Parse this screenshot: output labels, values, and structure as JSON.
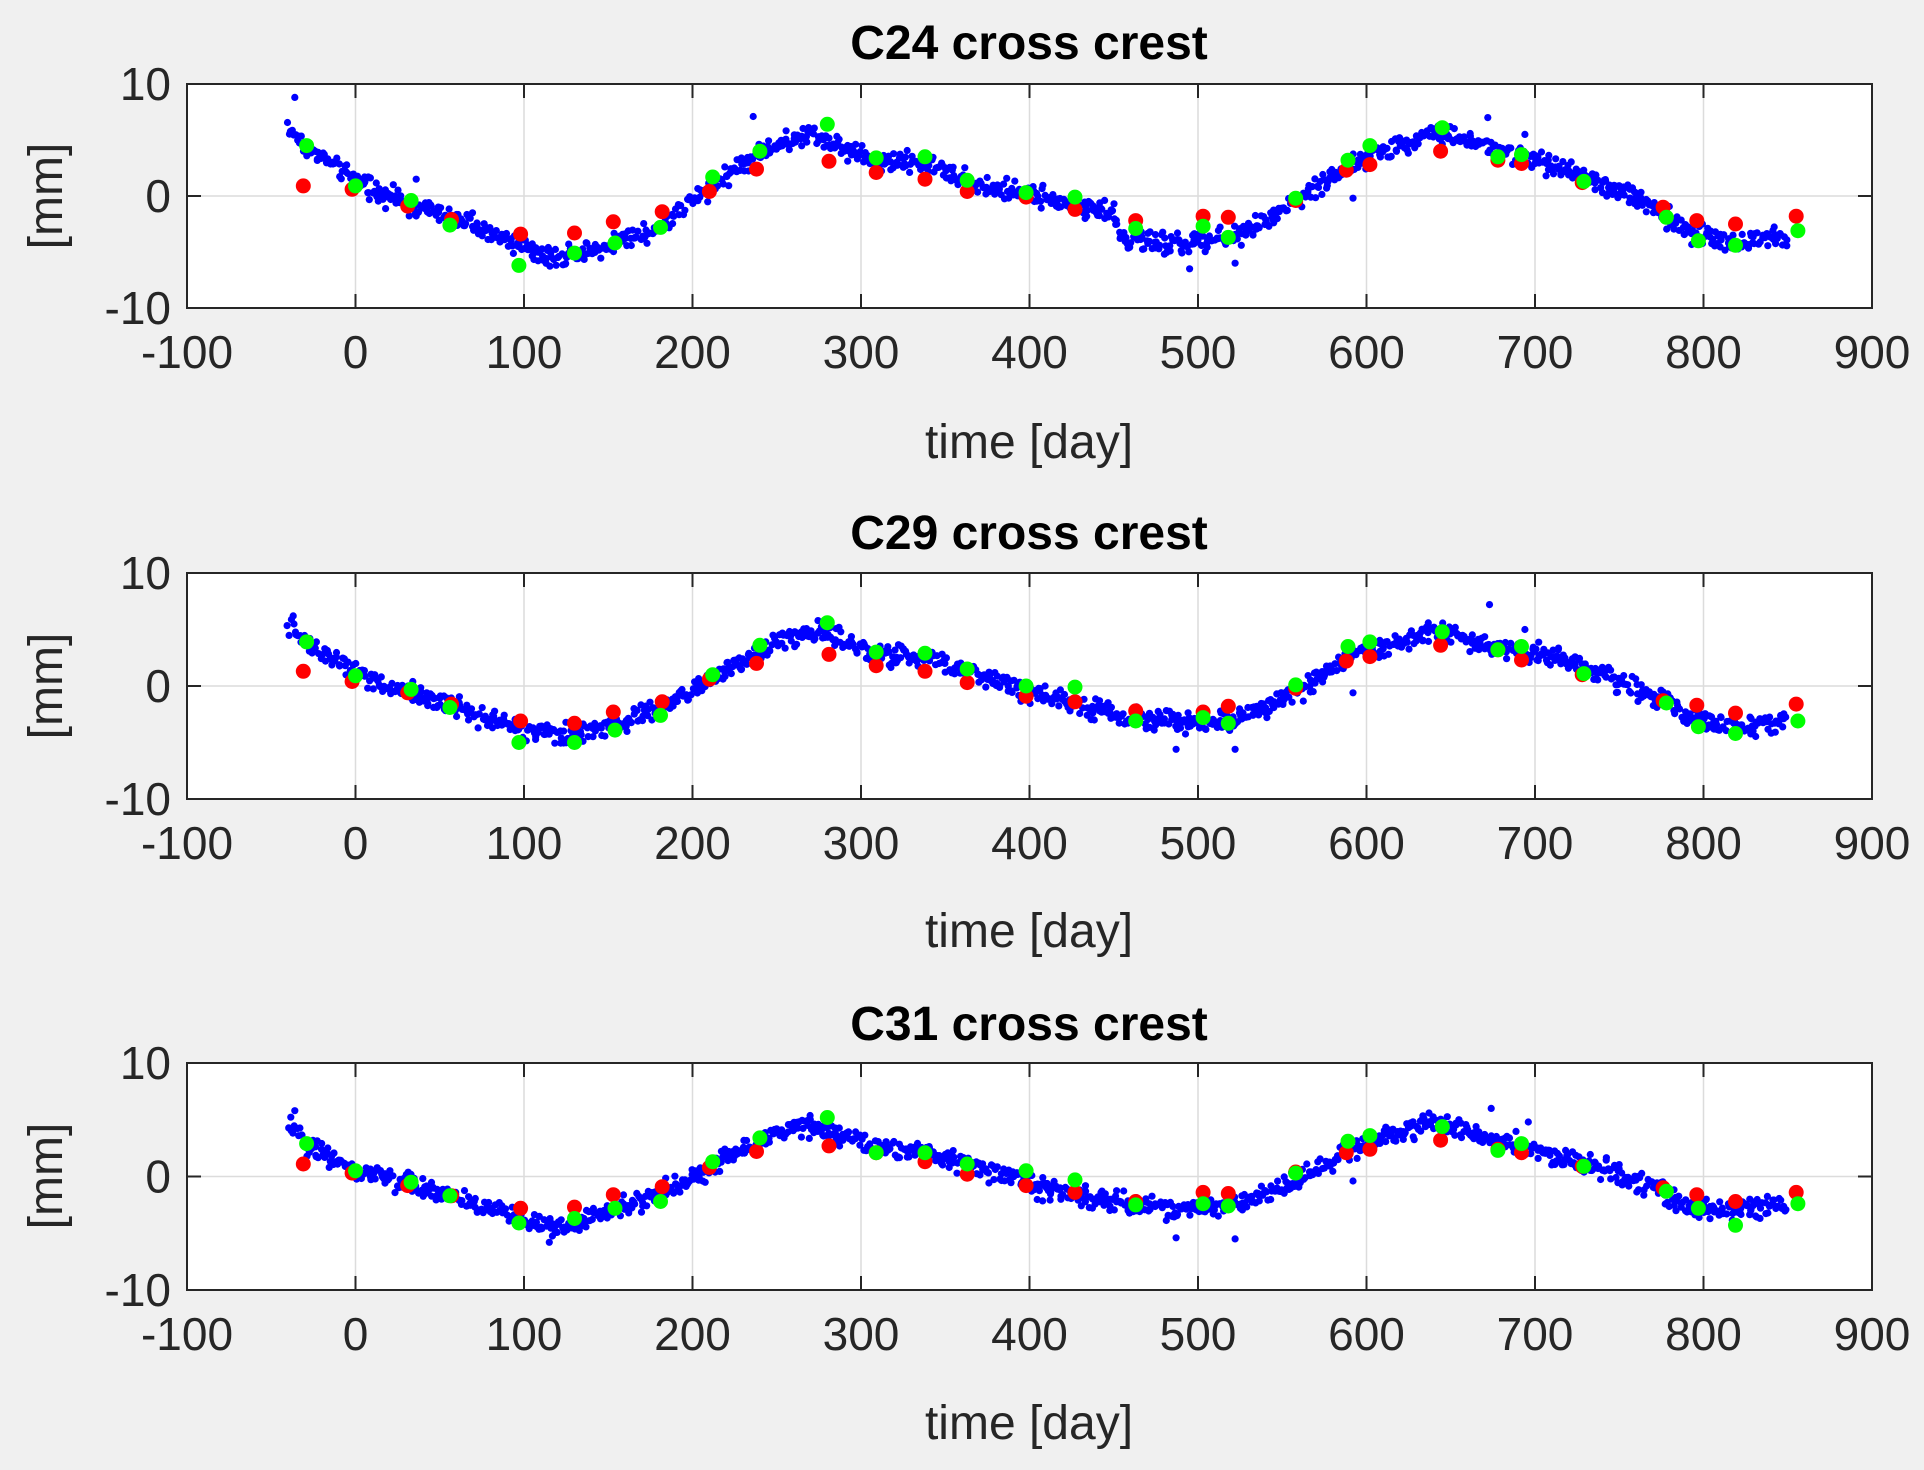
{
  "colors": {
    "figure_bg": "#f0f0f0",
    "axes_bg": "#ffffff",
    "axis": "#262626",
    "grid": "#dcdcdc",
    "blue": "#0000ff",
    "red": "#ff0000",
    "green": "#00ff00"
  },
  "chart_data": [
    {
      "type": "scatter",
      "title": "C24 cross crest",
      "xlabel": "time [day]",
      "ylabel": "[mm]",
      "xlim": [
        -100,
        900
      ],
      "ylim": [
        -10,
        10
      ],
      "xticks": [
        -100,
        0,
        100,
        200,
        300,
        400,
        500,
        600,
        700,
        800,
        900
      ],
      "yticks": [
        -10,
        0,
        10
      ],
      "xtick_labels": [
        "-100",
        "0",
        "100",
        "200",
        "300",
        "400",
        "500",
        "600",
        "700",
        "800",
        "900"
      ],
      "ytick_labels": [
        "-10",
        "0",
        "10"
      ],
      "grid": true,
      "blue_trend": [
        [
          -40,
          6.2
        ],
        [
          -30,
          4.5
        ],
        [
          0,
          1.5
        ],
        [
          30,
          -0.8
        ],
        [
          60,
          -2.0
        ],
        [
          100,
          -4.5
        ],
        [
          120,
          -5.5
        ],
        [
          150,
          -4.3
        ],
        [
          180,
          -2.8
        ],
        [
          210,
          0.8
        ],
        [
          240,
          3.8
        ],
        [
          270,
          5.6
        ],
        [
          290,
          4.2
        ],
        [
          310,
          3.0
        ],
        [
          340,
          3.0
        ],
        [
          370,
          1.0
        ],
        [
          400,
          0.0
        ],
        [
          430,
          -0.8
        ],
        [
          450,
          -1.5
        ],
        [
          455,
          -3.8
        ],
        [
          480,
          -4.3
        ],
        [
          510,
          -4.0
        ],
        [
          530,
          -3.2
        ],
        [
          560,
          -0.3
        ],
        [
          590,
          2.8
        ],
        [
          610,
          4.0
        ],
        [
          640,
          5.8
        ],
        [
          670,
          4.5
        ],
        [
          700,
          3.2
        ],
        [
          740,
          1.2
        ],
        [
          770,
          -0.8
        ],
        [
          790,
          -3.2
        ],
        [
          820,
          -4.2
        ],
        [
          850,
          -3.6
        ]
      ],
      "blue_outliers": [
        [
          -36,
          8.8
        ],
        [
          236,
          7.1
        ],
        [
          672,
          7.0
        ],
        [
          694,
          5.5
        ],
        [
          495,
          -6.5
        ],
        [
          522,
          -6.0
        ],
        [
          592,
          -0.2
        ],
        [
          36,
          1.5
        ]
      ],
      "series": [
        {
          "name": "red",
          "color": "#ff0000",
          "x": [
            -31,
            -2,
            31,
            57,
            98,
            130,
            153,
            182,
            210,
            238,
            281,
            309,
            338,
            363,
            398,
            427,
            463,
            503,
            518,
            558,
            588,
            602,
            644,
            678,
            692,
            728,
            776,
            796,
            819,
            855
          ],
          "y": [
            0.9,
            0.6,
            -0.9,
            -2.1,
            -3.4,
            -3.3,
            -2.3,
            -1.4,
            0.4,
            2.4,
            3.1,
            2.1,
            1.5,
            0.4,
            -0.1,
            -1.2,
            -2.2,
            -1.8,
            -1.9,
            -0.4,
            2.3,
            2.8,
            4.0,
            3.2,
            2.9,
            1.2,
            -1.0,
            -2.2,
            -2.5,
            -1.8
          ]
        },
        {
          "name": "green",
          "color": "#00ff00",
          "x": [
            -29,
            0,
            33,
            56,
            97,
            130,
            154,
            181,
            212,
            240,
            280,
            309,
            338,
            363,
            398,
            427,
            463,
            503,
            518,
            558,
            589,
            602,
            645,
            678,
            692,
            729,
            778,
            797,
            819,
            856
          ],
          "y": [
            4.5,
            0.9,
            -0.4,
            -2.6,
            -6.2,
            -5.1,
            -4.2,
            -2.8,
            1.7,
            4.0,
            6.4,
            3.4,
            3.5,
            1.4,
            0.3,
            -0.1,
            -2.9,
            -2.7,
            -3.7,
            -0.2,
            3.2,
            4.5,
            6.1,
            3.5,
            3.7,
            1.3,
            -1.9,
            -4.0,
            -4.4,
            -3.1
          ]
        }
      ]
    },
    {
      "type": "scatter",
      "title": "C29 cross crest",
      "xlabel": "time [day]",
      "ylabel": "[mm]",
      "xlim": [
        -100,
        900
      ],
      "ylim": [
        -10,
        10
      ],
      "xticks": [
        -100,
        0,
        100,
        200,
        300,
        400,
        500,
        600,
        700,
        800,
        900
      ],
      "yticks": [
        -10,
        0,
        10
      ],
      "xtick_labels": [
        "-100",
        "0",
        "100",
        "200",
        "300",
        "400",
        "500",
        "600",
        "700",
        "800",
        "900"
      ],
      "ytick_labels": [
        "-10",
        "0",
        "10"
      ],
      "grid": true,
      "blue_trend": [
        [
          -40,
          5.3
        ],
        [
          -30,
          3.8
        ],
        [
          0,
          1.2
        ],
        [
          30,
          -0.6
        ],
        [
          60,
          -1.8
        ],
        [
          100,
          -3.8
        ],
        [
          120,
          -4.4
        ],
        [
          150,
          -3.6
        ],
        [
          180,
          -2.2
        ],
        [
          210,
          0.6
        ],
        [
          240,
          3.0
        ],
        [
          270,
          5.0
        ],
        [
          290,
          3.8
        ],
        [
          310,
          2.8
        ],
        [
          340,
          2.6
        ],
        [
          370,
          1.0
        ],
        [
          400,
          -0.5
        ],
        [
          430,
          -1.6
        ],
        [
          460,
          -2.8
        ],
        [
          490,
          -3.2
        ],
        [
          520,
          -3.0
        ],
        [
          560,
          -0.5
        ],
        [
          590,
          2.6
        ],
        [
          610,
          3.5
        ],
        [
          640,
          4.8
        ],
        [
          670,
          3.8
        ],
        [
          700,
          2.8
        ],
        [
          740,
          1.0
        ],
        [
          770,
          -0.8
        ],
        [
          790,
          -2.8
        ],
        [
          820,
          -3.6
        ],
        [
          850,
          -3.1
        ]
      ],
      "blue_outliers": [
        [
          -37,
          6.2
        ],
        [
          673,
          7.2
        ],
        [
          694,
          5.0
        ],
        [
          487,
          -5.6
        ],
        [
          522,
          -5.6
        ],
        [
          592,
          -0.6
        ],
        [
          34,
          0.4
        ]
      ],
      "series": [
        {
          "name": "red",
          "color": "#ff0000",
          "x": [
            -31,
            -2,
            31,
            57,
            98,
            130,
            153,
            182,
            210,
            238,
            281,
            309,
            338,
            363,
            398,
            427,
            463,
            503,
            518,
            558,
            588,
            602,
            644,
            678,
            692,
            728,
            776,
            796,
            819,
            855
          ],
          "y": [
            1.3,
            0.4,
            -0.6,
            -1.6,
            -3.1,
            -3.3,
            -2.3,
            -1.4,
            0.6,
            2.0,
            2.8,
            1.8,
            1.3,
            0.3,
            -0.9,
            -1.4,
            -2.2,
            -2.3,
            -1.8,
            -0.2,
            2.2,
            2.6,
            3.6,
            3.2,
            2.3,
            1.0,
            -1.3,
            -1.7,
            -2.4,
            -1.6
          ]
        },
        {
          "name": "green",
          "color": "#00ff00",
          "x": [
            -29,
            0,
            33,
            56,
            97,
            130,
            154,
            181,
            212,
            240,
            280,
            309,
            338,
            363,
            398,
            427,
            463,
            503,
            518,
            558,
            589,
            602,
            645,
            678,
            692,
            729,
            778,
            797,
            819,
            856
          ],
          "y": [
            3.9,
            0.9,
            -0.3,
            -1.9,
            -5.0,
            -5.0,
            -3.9,
            -2.6,
            1.0,
            3.6,
            5.6,
            3.0,
            2.9,
            1.5,
            0.0,
            -0.1,
            -3.1,
            -2.8,
            -3.3,
            0.1,
            3.5,
            3.9,
            4.8,
            3.2,
            3.5,
            1.1,
            -1.5,
            -3.6,
            -4.2,
            -3.1
          ]
        }
      ]
    },
    {
      "type": "scatter",
      "title": "C31 cross crest",
      "xlabel": "time [day]",
      "ylabel": "[mm]",
      "xlim": [
        -100,
        900
      ],
      "ylim": [
        -10,
        10
      ],
      "xticks": [
        -100,
        0,
        100,
        200,
        300,
        400,
        500,
        600,
        700,
        800,
        900
      ],
      "yticks": [
        -10,
        0,
        10
      ],
      "xtick_labels": [
        "-100",
        "0",
        "100",
        "200",
        "300",
        "400",
        "500",
        "600",
        "700",
        "800",
        "900"
      ],
      "ytick_labels": [
        "-10",
        "0",
        "10"
      ],
      "grid": true,
      "blue_trend": [
        [
          -40,
          4.6
        ],
        [
          -30,
          3.0
        ],
        [
          0,
          0.6
        ],
        [
          30,
          -0.6
        ],
        [
          60,
          -1.8
        ],
        [
          100,
          -3.8
        ],
        [
          120,
          -4.6
        ],
        [
          150,
          -3.2
        ],
        [
          180,
          -1.6
        ],
        [
          210,
          0.8
        ],
        [
          240,
          3.2
        ],
        [
          270,
          4.6
        ],
        [
          290,
          3.6
        ],
        [
          310,
          2.6
        ],
        [
          340,
          2.0
        ],
        [
          370,
          0.8
        ],
        [
          400,
          -0.6
        ],
        [
          430,
          -1.6
        ],
        [
          460,
          -2.6
        ],
        [
          490,
          -2.8
        ],
        [
          520,
          -2.6
        ],
        [
          560,
          -0.3
        ],
        [
          590,
          2.4
        ],
        [
          610,
          3.4
        ],
        [
          640,
          5.0
        ],
        [
          670,
          3.4
        ],
        [
          700,
          2.4
        ],
        [
          740,
          0.6
        ],
        [
          770,
          -0.8
        ],
        [
          790,
          -2.6
        ],
        [
          820,
          -3.0
        ],
        [
          850,
          -2.6
        ]
      ],
      "blue_outliers": [
        [
          -36,
          5.8
        ],
        [
          674,
          6.0
        ],
        [
          696,
          4.8
        ],
        [
          487,
          -5.4
        ],
        [
          522,
          -5.5
        ],
        [
          592,
          -0.4
        ],
        [
          115,
          -5.8
        ]
      ],
      "series": [
        {
          "name": "red",
          "color": "#ff0000",
          "x": [
            -31,
            -2,
            31,
            57,
            98,
            130,
            153,
            182,
            210,
            238,
            281,
            309,
            338,
            363,
            398,
            427,
            463,
            503,
            518,
            558,
            588,
            602,
            644,
            678,
            692,
            728,
            776,
            796,
            819,
            855
          ],
          "y": [
            1.1,
            0.3,
            -0.8,
            -1.7,
            -2.8,
            -2.7,
            -1.6,
            -0.9,
            0.8,
            2.2,
            2.7,
            2.1,
            1.3,
            0.2,
            -0.8,
            -1.4,
            -2.2,
            -1.4,
            -1.5,
            0.4,
            2.1,
            2.4,
            3.2,
            2.4,
            2.1,
            0.9,
            -1.0,
            -1.6,
            -2.2,
            -1.4
          ]
        },
        {
          "name": "green",
          "color": "#00ff00",
          "x": [
            -29,
            0,
            33,
            56,
            97,
            130,
            154,
            181,
            212,
            240,
            280,
            309,
            338,
            363,
            398,
            427,
            463,
            503,
            518,
            558,
            589,
            602,
            645,
            678,
            692,
            729,
            778,
            797,
            819,
            856
          ],
          "y": [
            2.9,
            0.5,
            -0.5,
            -1.7,
            -4.1,
            -3.7,
            -2.8,
            -2.2,
            1.3,
            3.4,
            5.2,
            2.1,
            2.1,
            1.1,
            0.5,
            -0.3,
            -2.5,
            -2.4,
            -2.6,
            0.3,
            3.1,
            3.6,
            4.4,
            2.3,
            2.9,
            0.9,
            -1.3,
            -2.8,
            -4.3,
            -2.4
          ]
        }
      ]
    }
  ]
}
